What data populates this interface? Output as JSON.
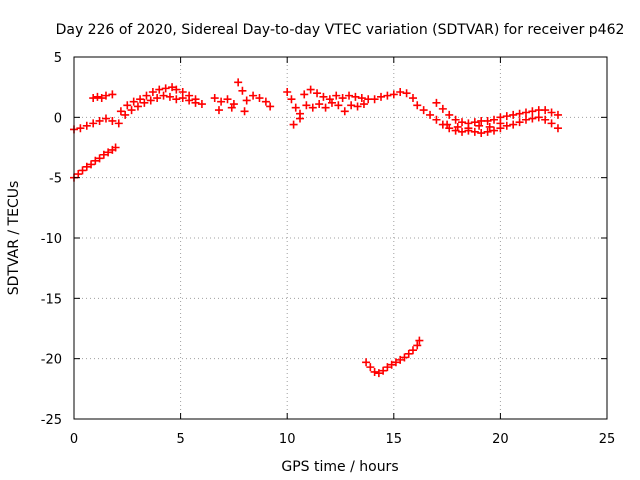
{
  "chart_data": {
    "type": "scatter",
    "title": "Day 226 of 2020, Sidereal Day-to-day VTEC variation (SDTVAR) for receiver p462",
    "xlabel": "GPS time / hours",
    "ylabel": "SDTVAR / TECUs",
    "xlim": [
      0,
      25
    ],
    "ylim": [
      -25,
      5
    ],
    "xticks": [
      "0",
      "5",
      "10",
      "15",
      "20",
      "25"
    ],
    "yticks": [
      "5",
      "0",
      "-5",
      "-10",
      "-15",
      "-20",
      "-25"
    ],
    "grid": true,
    "marker": "+",
    "color": "#ff0000",
    "series": [
      {
        "name": "p462",
        "points": [
          [
            0.0,
            -1.0
          ],
          [
            0.3,
            -0.9
          ],
          [
            0.6,
            -0.7
          ],
          [
            0.9,
            -0.5
          ],
          [
            1.2,
            -0.3
          ],
          [
            1.5,
            -0.1
          ],
          [
            1.8,
            -0.3
          ],
          [
            2.1,
            -0.5
          ],
          [
            0.0,
            -5.0
          ],
          [
            0.2,
            -4.7
          ],
          [
            0.4,
            -4.4
          ],
          [
            0.6,
            -4.1
          ],
          [
            0.8,
            -3.9
          ],
          [
            1.0,
            -3.6
          ],
          [
            1.2,
            -3.4
          ],
          [
            1.4,
            -3.1
          ],
          [
            1.6,
            -2.9
          ],
          [
            1.8,
            -2.7
          ],
          [
            1.95,
            -2.5
          ],
          [
            0.9,
            1.6
          ],
          [
            1.1,
            1.7
          ],
          [
            1.3,
            1.6
          ],
          [
            1.5,
            1.8
          ],
          [
            1.8,
            1.9
          ],
          [
            2.2,
            0.5
          ],
          [
            2.5,
            1.0
          ],
          [
            2.8,
            1.3
          ],
          [
            3.1,
            1.5
          ],
          [
            3.4,
            1.8
          ],
          [
            3.7,
            2.1
          ],
          [
            4.0,
            2.3
          ],
          [
            4.3,
            2.4
          ],
          [
            4.6,
            2.5
          ],
          [
            4.8,
            2.3
          ],
          [
            5.1,
            2.1
          ],
          [
            5.4,
            1.8
          ],
          [
            5.7,
            1.5
          ],
          [
            6.0,
            1.1
          ],
          [
            2.4,
            0.2
          ],
          [
            2.7,
            0.6
          ],
          [
            3.0,
            0.9
          ],
          [
            3.3,
            1.2
          ],
          [
            3.6,
            1.4
          ],
          [
            3.9,
            1.6
          ],
          [
            4.2,
            1.8
          ],
          [
            4.5,
            1.7
          ],
          [
            4.8,
            1.5
          ],
          [
            5.1,
            1.6
          ],
          [
            5.4,
            1.4
          ],
          [
            5.7,
            1.2
          ],
          [
            6.6,
            1.6
          ],
          [
            6.9,
            1.3
          ],
          [
            7.2,
            1.5
          ],
          [
            7.5,
            1.1
          ],
          [
            7.7,
            2.9
          ],
          [
            7.9,
            2.2
          ],
          [
            8.1,
            1.4
          ],
          [
            8.4,
            1.8
          ],
          [
            8.7,
            1.6
          ],
          [
            9.0,
            1.3
          ],
          [
            9.2,
            0.9
          ],
          [
            6.8,
            0.6
          ],
          [
            7.4,
            0.8
          ],
          [
            8.0,
            0.5
          ],
          [
            10.0,
            2.1
          ],
          [
            10.2,
            1.5
          ],
          [
            10.4,
            0.8
          ],
          [
            10.6,
            0.3
          ],
          [
            10.3,
            -0.6
          ],
          [
            10.6,
            -0.1
          ],
          [
            10.8,
            1.9
          ],
          [
            11.1,
            2.3
          ],
          [
            11.4,
            2.0
          ],
          [
            11.7,
            1.7
          ],
          [
            12.0,
            1.5
          ],
          [
            12.3,
            1.8
          ],
          [
            12.6,
            1.6
          ],
          [
            12.9,
            1.8
          ],
          [
            13.2,
            1.7
          ],
          [
            13.5,
            1.6
          ],
          [
            13.8,
            1.5
          ],
          [
            14.1,
            1.5
          ],
          [
            14.4,
            1.7
          ],
          [
            14.7,
            1.8
          ],
          [
            15.0,
            1.9
          ],
          [
            15.3,
            2.1
          ],
          [
            15.6,
            2.0
          ],
          [
            15.9,
            1.6
          ],
          [
            10.9,
            1.0
          ],
          [
            11.2,
            0.8
          ],
          [
            11.5,
            1.1
          ],
          [
            11.8,
            0.8
          ],
          [
            12.1,
            1.2
          ],
          [
            12.4,
            1.0
          ],
          [
            12.7,
            0.5
          ],
          [
            13.0,
            1.0
          ],
          [
            13.3,
            0.9
          ],
          [
            13.6,
            1.1
          ],
          [
            16.1,
            1.0
          ],
          [
            16.4,
            0.6
          ],
          [
            16.7,
            0.2
          ],
          [
            17.0,
            -0.2
          ],
          [
            17.3,
            -0.6
          ],
          [
            17.6,
            -0.9
          ],
          [
            17.9,
            -1.1
          ],
          [
            18.2,
            -1.2
          ],
          [
            18.5,
            -1.1
          ],
          [
            18.8,
            -1.2
          ],
          [
            19.1,
            -1.3
          ],
          [
            19.4,
            -1.2
          ],
          [
            19.7,
            -1.1
          ],
          [
            20.0,
            -0.9
          ],
          [
            20.3,
            -0.7
          ],
          [
            20.6,
            -0.6
          ],
          [
            20.9,
            -0.4
          ],
          [
            21.2,
            -0.2
          ],
          [
            21.5,
            -0.1
          ],
          [
            21.8,
            0.0
          ],
          [
            22.1,
            -0.2
          ],
          [
            22.4,
            -0.5
          ],
          [
            22.7,
            -0.9
          ],
          [
            17.0,
            1.2
          ],
          [
            17.3,
            0.7
          ],
          [
            17.6,
            0.2
          ],
          [
            17.9,
            -0.2
          ],
          [
            18.2,
            -0.4
          ],
          [
            18.5,
            -0.5
          ],
          [
            18.8,
            -0.4
          ],
          [
            19.1,
            -0.3
          ],
          [
            19.4,
            -0.3
          ],
          [
            19.7,
            -0.2
          ],
          [
            20.0,
            0.0
          ],
          [
            20.3,
            0.1
          ],
          [
            20.6,
            0.2
          ],
          [
            20.9,
            0.3
          ],
          [
            21.2,
            0.4
          ],
          [
            21.5,
            0.5
          ],
          [
            21.8,
            0.6
          ],
          [
            22.1,
            0.6
          ],
          [
            22.4,
            0.4
          ],
          [
            22.7,
            0.2
          ],
          [
            17.5,
            -0.6
          ],
          [
            18.0,
            -0.8
          ],
          [
            18.5,
            -0.9
          ],
          [
            19.0,
            -0.7
          ],
          [
            19.5,
            -0.8
          ],
          [
            20.0,
            -0.5
          ],
          [
            13.7,
            -20.3
          ],
          [
            13.9,
            -20.7
          ],
          [
            14.1,
            -21.1
          ],
          [
            14.3,
            -21.2
          ],
          [
            14.5,
            -21.0
          ],
          [
            14.7,
            -20.7
          ],
          [
            14.9,
            -20.5
          ],
          [
            15.1,
            -20.3
          ],
          [
            15.3,
            -20.1
          ],
          [
            15.5,
            -19.9
          ],
          [
            15.7,
            -19.6
          ],
          [
            15.9,
            -19.3
          ],
          [
            16.1,
            -18.9
          ],
          [
            16.2,
            -18.5
          ]
        ]
      }
    ]
  }
}
